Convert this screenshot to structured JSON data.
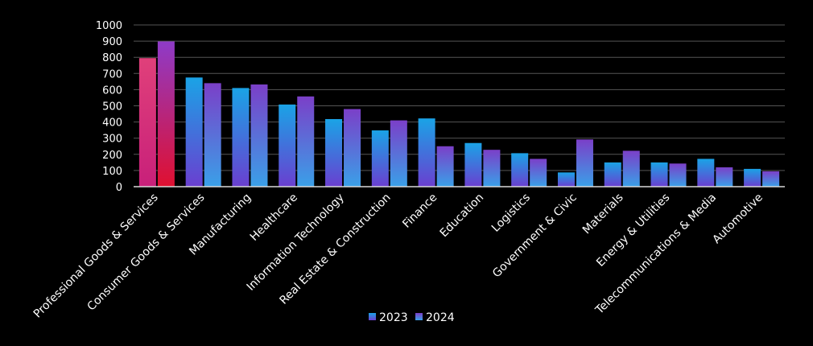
{
  "chart_data": {
    "type": "bar",
    "title": "",
    "xlabel": "",
    "ylabel": "",
    "ylim": [
      0,
      1000
    ],
    "yticks": [
      0,
      100,
      200,
      300,
      400,
      500,
      600,
      700,
      800,
      900,
      1000
    ],
    "grid": true,
    "legend_position": "bottom",
    "categories": [
      "Professional Goods & Services",
      "Consumer Goods & Services",
      "Manufacturing",
      "Healthcare",
      "Information Technology",
      "Real Estate & Construction",
      "Finance",
      "Education",
      "Logistics",
      "Government & Civic",
      "Materials",
      "Energy & Utilities",
      "Telecommunications & Media",
      "Automotive"
    ],
    "series": [
      {
        "name": "2023",
        "values": [
          795,
          675,
          610,
          508,
          418,
          348,
          422,
          270,
          207,
          88,
          150,
          150,
          172,
          110
        ],
        "color_top": "#1aa3e6",
        "color_bottom": "#6a3fd0"
      },
      {
        "name": "2024",
        "values": [
          898,
          640,
          632,
          558,
          480,
          410,
          250,
          228,
          172,
          292,
          222,
          143,
          120,
          95
        ],
        "color_top": "#7b3fc8",
        "color_bottom": "#3aa0e8"
      }
    ],
    "highlight": {
      "category_index": 0,
      "series_colors_top": [
        "#e0407a",
        "#8e3bc8"
      ],
      "series_colors_bottom": [
        "#c8207a",
        "#e01030"
      ]
    },
    "axis_color": "#d9d9d9",
    "grid_color": "#555555",
    "text_color": "#ffffff"
  }
}
